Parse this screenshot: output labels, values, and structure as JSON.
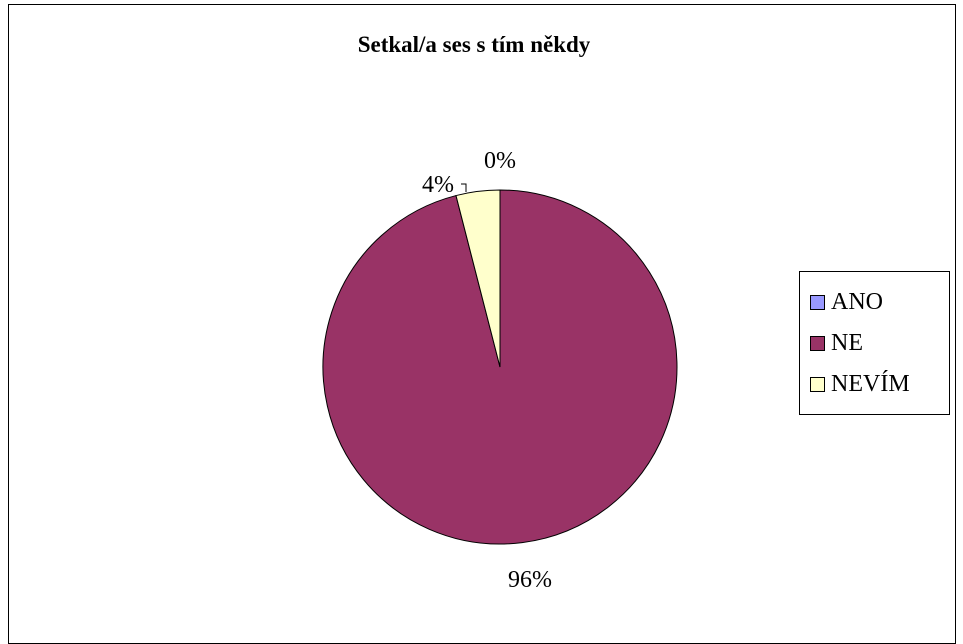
{
  "chart_data": {
    "type": "pie",
    "title": "Setkal/a ses s tím někdy",
    "categories": [
      "ANO",
      "NE",
      "NEVÍM"
    ],
    "values": [
      0,
      96,
      4
    ],
    "labels": [
      "0%",
      "96%",
      "4%"
    ],
    "colors": [
      "#9999FF",
      "#993366",
      "#FFFFCC"
    ],
    "legend_position": "right"
  },
  "legend": {
    "items": [
      {
        "label": "ANO",
        "color": "#9999FF"
      },
      {
        "label": "NE",
        "color": "#993366"
      },
      {
        "label": "NEVÍM",
        "color": "#FFFFCC"
      }
    ]
  }
}
